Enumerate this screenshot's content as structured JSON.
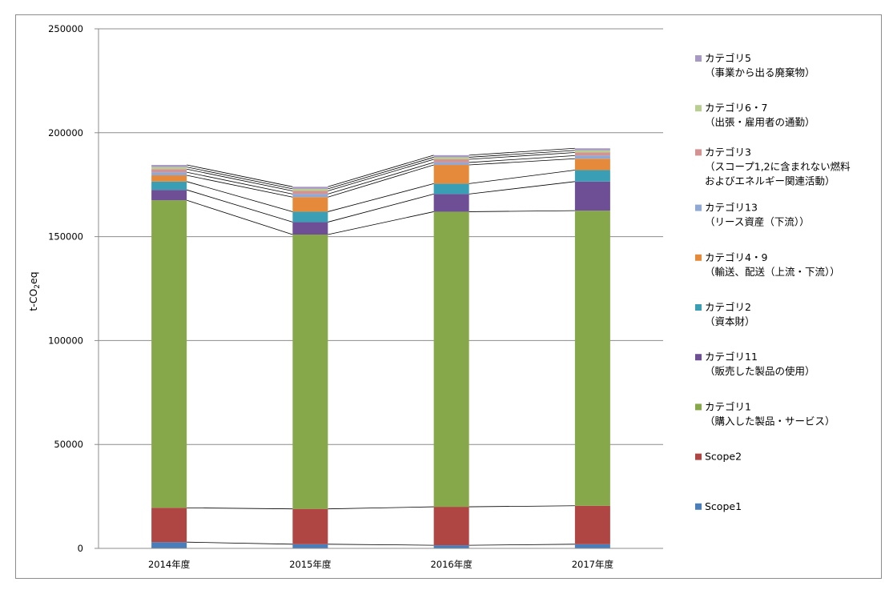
{
  "chart_data": {
    "type": "bar",
    "stacked": true,
    "categories": [
      "2014年度",
      "2015年度",
      "2016年度",
      "2017年度"
    ],
    "ylabel": "t-CO2eq",
    "ylabel_parts": [
      "t-CO",
      "2",
      "eq"
    ],
    "ylim": [
      0,
      250000
    ],
    "yticks": [
      "0",
      "50000",
      "100000",
      "150000",
      "200000",
      "250000"
    ],
    "ytick_values": [
      0,
      50000,
      100000,
      150000,
      200000,
      250000
    ],
    "grid": true,
    "legend_position": "right",
    "series": [
      {
        "name": "Scope1",
        "label_lines": [
          "Scope1"
        ],
        "color": "#4a7ebb",
        "values": [
          3000,
          2000,
          1500,
          2000
        ]
      },
      {
        "name": "Scope2",
        "label_lines": [
          "Scope2"
        ],
        "color": "#b04643",
        "values": [
          16500,
          17000,
          18500,
          18500
        ]
      },
      {
        "name": "カテゴリ1（購入した製品・サービス）",
        "label_lines": [
          "カテゴリ1",
          "（購入した製品・サービス）"
        ],
        "color": "#87a84a",
        "values": [
          148000,
          132000,
          142000,
          142000
        ]
      },
      {
        "name": "カテゴリ11（販売した製品の使用）",
        "label_lines": [
          "カテゴリ11",
          "（販売した製品の使用）"
        ],
        "color": "#6e4e94",
        "values": [
          5000,
          6000,
          8500,
          14000
        ]
      },
      {
        "name": "カテゴリ2（資本財）",
        "label_lines": [
          "カテゴリ2",
          "（資本財）"
        ],
        "color": "#3a9fb5",
        "values": [
          4000,
          5000,
          5000,
          5500
        ]
      },
      {
        "name": "カテゴリ4・9（輸送、配送（上流・下流））",
        "label_lines": [
          "カテゴリ4・9",
          "（輸送、配送（上流・下流））"
        ],
        "color": "#e58a3b",
        "values": [
          3000,
          7000,
          9000,
          5500
        ]
      },
      {
        "name": "カテゴリ13（リース資産（下流））",
        "label_lines": [
          "カテゴリ13",
          "（リース資産（下流））"
        ],
        "color": "#8fa8d4",
        "values": [
          1500,
          1500,
          1200,
          1500
        ]
      },
      {
        "name": "カテゴリ3（スコープ1,2に含まれない燃料およびエネルギー関連活動）",
        "label_lines": [
          "カテゴリ3",
          "（スコープ1,2に含まれない燃料",
          "およびエネルギー関連活動）"
        ],
        "color": "#d49292",
        "values": [
          1500,
          1500,
          1500,
          1500
        ]
      },
      {
        "name": "カテゴリ6・7（出張・雇用者の通勤）",
        "label_lines": [
          "カテゴリ6・7",
          "（出張・雇用者の通勤）"
        ],
        "color": "#b9cf92",
        "values": [
          1000,
          1000,
          1000,
          1000
        ]
      },
      {
        "name": "カテゴリ5（事業から出る廃棄物）",
        "label_lines": [
          "カテゴリ5",
          "（事業から出る廃棄物）"
        ],
        "color": "#a899c4",
        "values": [
          1000,
          1000,
          1000,
          1000
        ]
      }
    ]
  }
}
